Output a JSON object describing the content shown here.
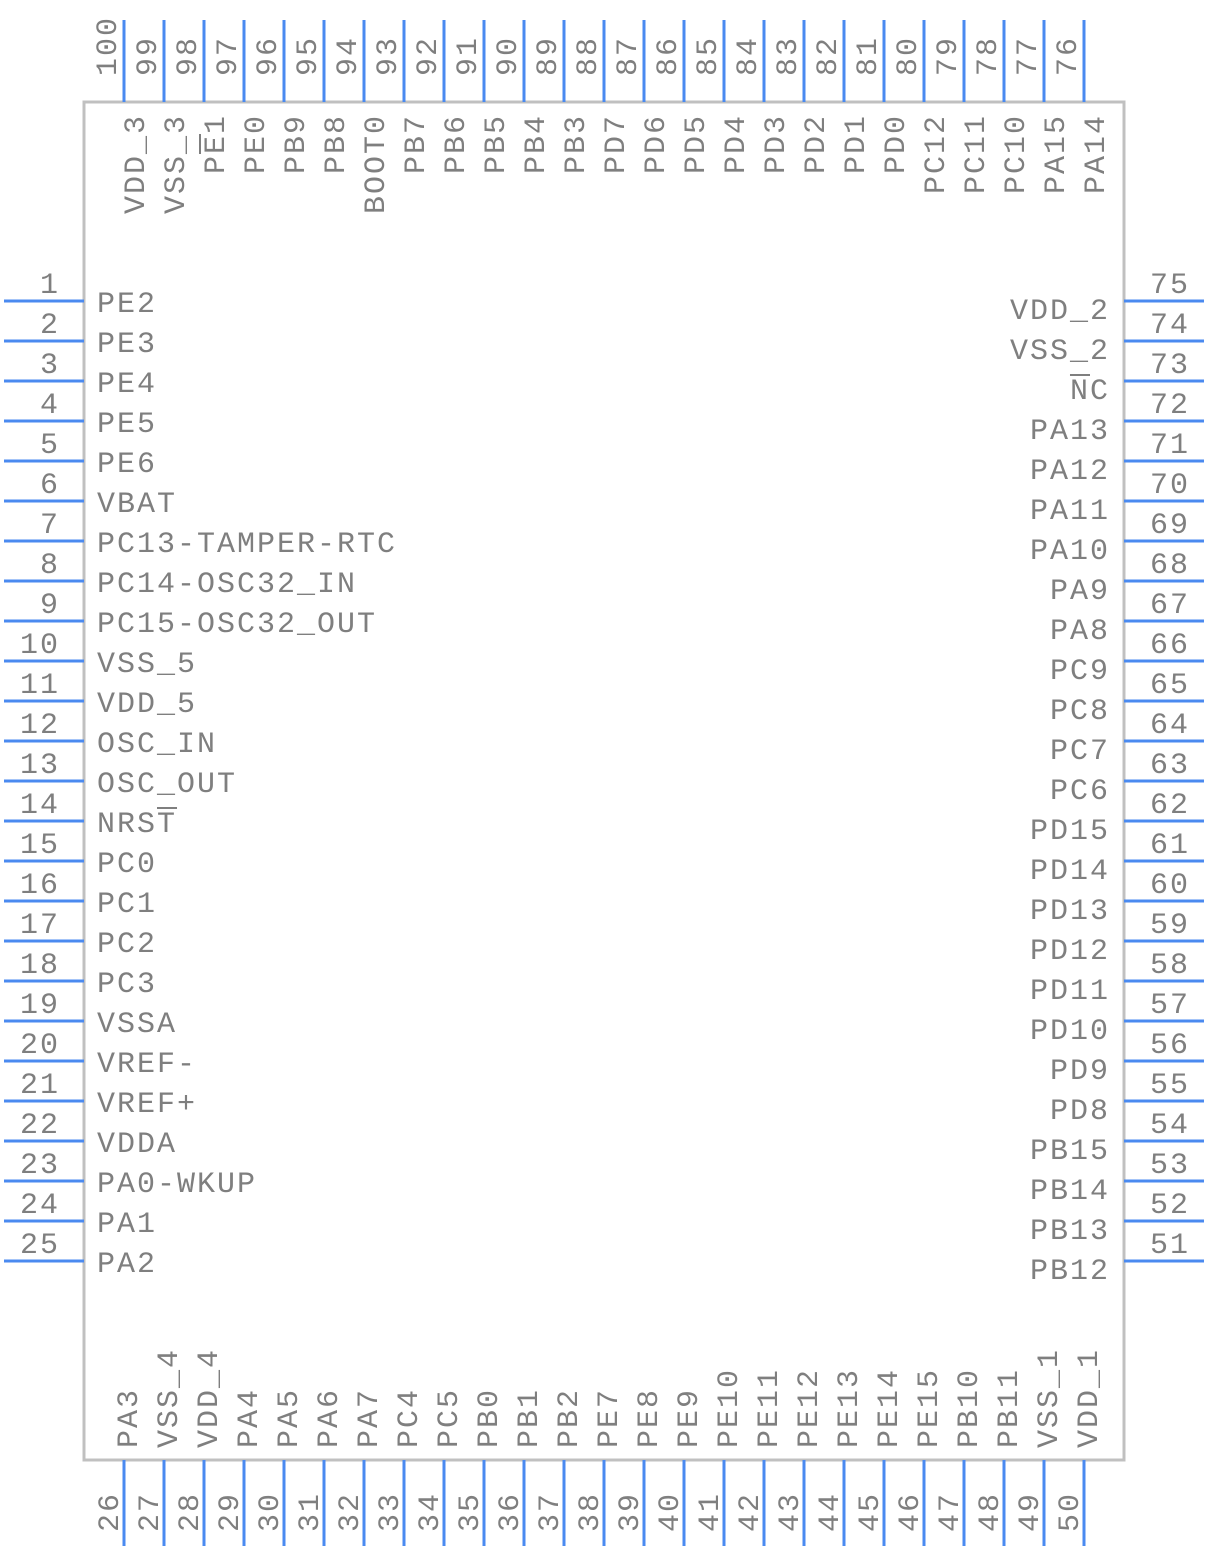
{
  "colors": {
    "pin": "#4a8af0",
    "body_border": "#c0c0c0",
    "text": "#7f7f7f"
  },
  "left_pins": [
    {
      "num": "1",
      "label": "PE2"
    },
    {
      "num": "2",
      "label": "PE3"
    },
    {
      "num": "3",
      "label": "PE4"
    },
    {
      "num": "4",
      "label": "PE5"
    },
    {
      "num": "5",
      "label": "PE6"
    },
    {
      "num": "6",
      "label": "VBAT"
    },
    {
      "num": "7",
      "label": "PC13-TAMPER-RTC"
    },
    {
      "num": "8",
      "label": "PC14-OSC32_IN"
    },
    {
      "num": "9",
      "label": "PC15-OSC32_OUT"
    },
    {
      "num": "10",
      "label": "VSS_5"
    },
    {
      "num": "11",
      "label": "VDD_5"
    },
    {
      "num": "12",
      "label": "OSC_IN"
    },
    {
      "num": "13",
      "label": "OSC_OUT"
    },
    {
      "num": "14",
      "label": "NRST",
      "overbar": [
        3
      ]
    },
    {
      "num": "15",
      "label": "PC0"
    },
    {
      "num": "16",
      "label": "PC1"
    },
    {
      "num": "17",
      "label": "PC2"
    },
    {
      "num": "18",
      "label": "PC3"
    },
    {
      "num": "19",
      "label": "VSSA"
    },
    {
      "num": "20",
      "label": "VREF-"
    },
    {
      "num": "21",
      "label": "VREF+"
    },
    {
      "num": "22",
      "label": "VDDA"
    },
    {
      "num": "23",
      "label": "PA0-WKUP"
    },
    {
      "num": "24",
      "label": "PA1"
    },
    {
      "num": "25",
      "label": "PA2"
    }
  ],
  "right_pins": [
    {
      "num": "75",
      "label": "VDD_2"
    },
    {
      "num": "74",
      "label": "VSS_2"
    },
    {
      "num": "73",
      "label": "NC",
      "overbar": [
        0
      ]
    },
    {
      "num": "72",
      "label": "PA13"
    },
    {
      "num": "71",
      "label": "PA12"
    },
    {
      "num": "70",
      "label": "PA11"
    },
    {
      "num": "69",
      "label": "PA10"
    },
    {
      "num": "68",
      "label": "PA9"
    },
    {
      "num": "67",
      "label": "PA8"
    },
    {
      "num": "66",
      "label": "PC9"
    },
    {
      "num": "65",
      "label": "PC8"
    },
    {
      "num": "64",
      "label": "PC7"
    },
    {
      "num": "63",
      "label": "PC6"
    },
    {
      "num": "62",
      "label": "PD15"
    },
    {
      "num": "61",
      "label": "PD14"
    },
    {
      "num": "60",
      "label": "PD13"
    },
    {
      "num": "59",
      "label": "PD12"
    },
    {
      "num": "58",
      "label": "PD11"
    },
    {
      "num": "57",
      "label": "PD10"
    },
    {
      "num": "56",
      "label": "PD9"
    },
    {
      "num": "55",
      "label": "PD8"
    },
    {
      "num": "54",
      "label": "PB15"
    },
    {
      "num": "53",
      "label": "PB14"
    },
    {
      "num": "52",
      "label": "PB13"
    },
    {
      "num": "51",
      "label": "PB12"
    }
  ],
  "top_pins": [
    {
      "num": "100",
      "label": "VDD_3"
    },
    {
      "num": "99",
      "label": "VSS_3"
    },
    {
      "num": "98",
      "label": "PE1",
      "overbar": [
        1
      ]
    },
    {
      "num": "97",
      "label": "PE0"
    },
    {
      "num": "96",
      "label": "PB9"
    },
    {
      "num": "95",
      "label": "PB8"
    },
    {
      "num": "94",
      "label": "BOOT0"
    },
    {
      "num": "93",
      "label": "PB7"
    },
    {
      "num": "92",
      "label": "PB6"
    },
    {
      "num": "91",
      "label": "PB5"
    },
    {
      "num": "90",
      "label": "PB4"
    },
    {
      "num": "89",
      "label": "PB3"
    },
    {
      "num": "88",
      "label": "PD7"
    },
    {
      "num": "87",
      "label": "PD6"
    },
    {
      "num": "86",
      "label": "PD5"
    },
    {
      "num": "85",
      "label": "PD4"
    },
    {
      "num": "84",
      "label": "PD3"
    },
    {
      "num": "83",
      "label": "PD2"
    },
    {
      "num": "82",
      "label": "PD1"
    },
    {
      "num": "81",
      "label": "PD0"
    },
    {
      "num": "80",
      "label": "PC12"
    },
    {
      "num": "79",
      "label": "PC11"
    },
    {
      "num": "78",
      "label": "PC10"
    },
    {
      "num": "77",
      "label": "PA15"
    },
    {
      "num": "76",
      "label": "PA14"
    }
  ],
  "bottom_pins": [
    {
      "num": "26",
      "label": "PA3"
    },
    {
      "num": "27",
      "label": "VSS_4"
    },
    {
      "num": "28",
      "label": "VDD_4"
    },
    {
      "num": "29",
      "label": "PA4"
    },
    {
      "num": "30",
      "label": "PA5"
    },
    {
      "num": "31",
      "label": "PA6"
    },
    {
      "num": "32",
      "label": "PA7"
    },
    {
      "num": "33",
      "label": "PC4"
    },
    {
      "num": "34",
      "label": "PC5"
    },
    {
      "num": "35",
      "label": "PB0"
    },
    {
      "num": "36",
      "label": "PB1"
    },
    {
      "num": "37",
      "label": "PB2"
    },
    {
      "num": "38",
      "label": "PE7"
    },
    {
      "num": "39",
      "label": "PE8"
    },
    {
      "num": "40",
      "label": "PE9"
    },
    {
      "num": "41",
      "label": "PE10"
    },
    {
      "num": "42",
      "label": "PE11"
    },
    {
      "num": "43",
      "label": "PE12"
    },
    {
      "num": "44",
      "label": "PE13"
    },
    {
      "num": "45",
      "label": "PE14"
    },
    {
      "num": "46",
      "label": "PE15"
    },
    {
      "num": "47",
      "label": "PB10"
    },
    {
      "num": "48",
      "label": "PB11"
    },
    {
      "num": "49",
      "label": "VSS_1"
    },
    {
      "num": "50",
      "label": "VDD_1"
    }
  ]
}
